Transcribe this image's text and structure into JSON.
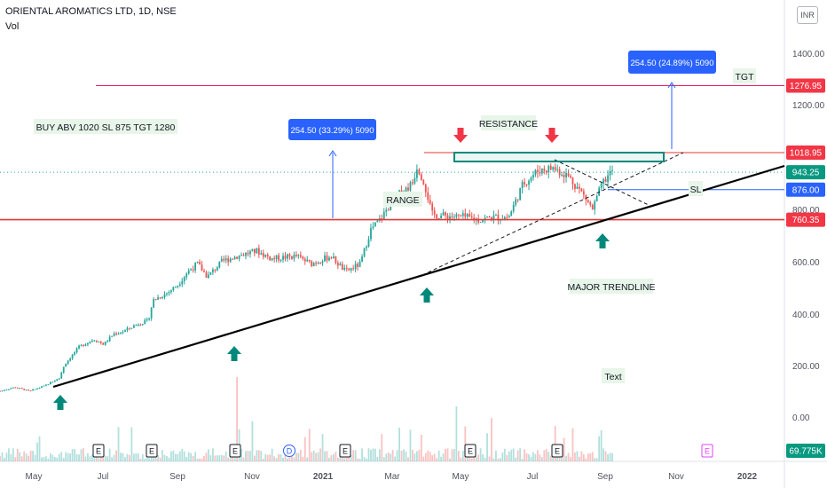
{
  "header": {
    "title": "ORIENTAL AROMATICS LTD, 1D, NSE",
    "indicator": "Vol",
    "currency": "INR"
  },
  "colors": {
    "up": "#26a69a",
    "down": "#ef5350",
    "red_line": "#e53935",
    "blue_line": "#2962ff",
    "trend": "#000000",
    "box": "#00897b",
    "label_bg": "#e8f5e9",
    "badge_blue": "#2962ff",
    "badge_red": "#f23645",
    "arrow_green": "#00897b",
    "arrow_red": "#f23645"
  },
  "chart_data": {
    "type": "candlestick",
    "x_axis": {
      "labels": [
        "May",
        "Jul",
        "Sep",
        "Nov",
        "2021",
        "Mar",
        "May",
        "Jul",
        "Sep",
        "Nov",
        "2022"
      ]
    },
    "y_axis": {
      "ticks": [
        "1400.00",
        "1200.00",
        "800.00",
        "600.00",
        "400.00",
        "200.00",
        "0.00"
      ],
      "ylim": [
        -40,
        1480
      ]
    },
    "price_path": [
      [
        0,
        100
      ],
      [
        0.03,
        115
      ],
      [
        0.06,
        100
      ],
      [
        0.09,
        120
      ],
      [
        0.12,
        150
      ],
      [
        0.13,
        200
      ],
      [
        0.16,
        270
      ],
      [
        0.19,
        300
      ],
      [
        0.21,
        280
      ],
      [
        0.23,
        320
      ],
      [
        0.25,
        330
      ],
      [
        0.28,
        360
      ],
      [
        0.3,
        370
      ],
      [
        0.31,
        450
      ],
      [
        0.34,
        480
      ],
      [
        0.36,
        510
      ],
      [
        0.38,
        560
      ],
      [
        0.4,
        590
      ],
      [
        0.42,
        540
      ],
      [
        0.45,
        600
      ],
      [
        0.48,
        620
      ],
      [
        0.52,
        640
      ],
      [
        0.55,
        610
      ],
      [
        0.6,
        620
      ],
      [
        0.63,
        590
      ],
      [
        0.67,
        620
      ],
      [
        0.7,
        560
      ],
      [
        0.73,
        590
      ],
      [
        0.75,
        720
      ],
      [
        0.77,
        760
      ],
      [
        0.79,
        820
      ],
      [
        0.81,
        860
      ],
      [
        0.835,
        900
      ],
      [
        0.845,
        970
      ],
      [
        0.86,
        900
      ],
      [
        0.875,
        780
      ],
      [
        0.9,
        775
      ],
      [
        0.94,
        770
      ],
      [
        0.97,
        760
      ],
      [
        1.0,
        770
      ],
      [
        1.03,
        770
      ],
      [
        1.06,
        900
      ],
      [
        1.09,
        950
      ],
      [
        1.12,
        960
      ],
      [
        1.15,
        930
      ],
      [
        1.18,
        860
      ],
      [
        1.2,
        800
      ],
      [
        1.22,
        900
      ],
      [
        1.24,
        950
      ]
    ],
    "volume_days": 1.24,
    "levels": [
      {
        "name": "TGT",
        "price": 1276.95,
        "label": "1276.95",
        "color": "#e91e63"
      },
      {
        "name": "resistance",
        "price": 1018.95,
        "label": "1018.95",
        "color": "#e53935"
      },
      {
        "name": "last",
        "price": 943.25,
        "label": "943.25",
        "color": "#00897b"
      },
      {
        "name": "SL",
        "price": 876.0,
        "label": "876.00",
        "color": "#2962ff"
      },
      {
        "name": "support",
        "price": 760.35,
        "label": "760.35",
        "color": "#e53935"
      }
    ],
    "volume_label": "69.775K",
    "annotations": {
      "buy_note": "BUY ABV 1020 SL 875 TGT 1280",
      "range_label": "RANGE",
      "resistance_label": "RESISTANCE",
      "major_trendline_label": "MAJOR TRENDLINE",
      "tgt_label": "TGT",
      "sl_label": "SL",
      "text_label": "Text",
      "measure_1": "254.50 (33.29%) 5090",
      "measure_2": "254.50 (24.89%) 5090"
    },
    "events": [
      "E",
      "E",
      "E",
      "D",
      "E",
      "E",
      "E",
      "E"
    ]
  }
}
